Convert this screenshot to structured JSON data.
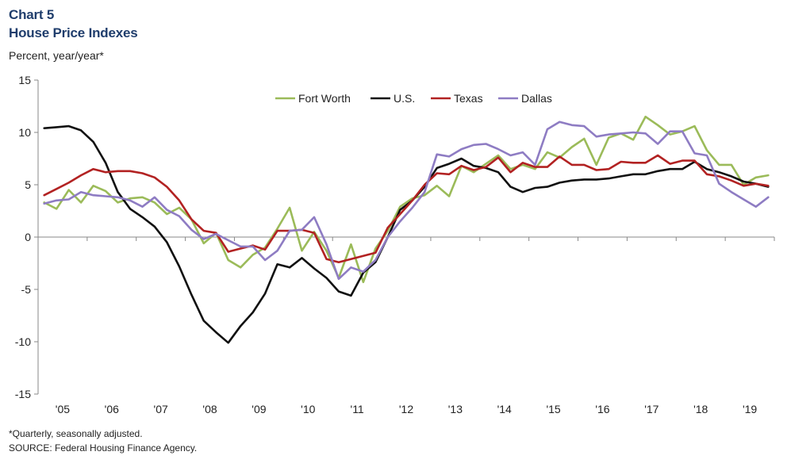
{
  "header": {
    "chart_number": "Chart 5",
    "title": "House Price Indexes",
    "ylabel": "Percent, year/year*"
  },
  "footer": {
    "note": "*Quarterly, seasonally adjusted.",
    "source": "SOURCE: Federal Housing Finance Agency."
  },
  "chart_data": {
    "type": "line",
    "title": "House Price Indexes",
    "ylabel": "Percent, year/year*",
    "xlabel": "",
    "ylim": [
      -15,
      15
    ],
    "yticks": [
      15,
      10,
      5,
      0,
      -5,
      -10,
      -15
    ],
    "x_start": "2005Q1",
    "x_end": "2019Q2",
    "xticks": [
      "'05",
      "'06",
      "'07",
      "'08",
      "'09",
      "'10",
      "'11",
      "'12",
      "'13",
      "'14",
      "'15",
      "'16",
      "'17",
      "'18",
      "'19"
    ],
    "grid": false,
    "legend_position": "top",
    "series": [
      {
        "name": "Fort Worth",
        "color": "#9bbb59",
        "values": [
          3.3,
          2.7,
          4.5,
          3.3,
          4.9,
          4.4,
          3.3,
          3.7,
          3.8,
          3.3,
          2.2,
          2.8,
          1.7,
          -0.6,
          0.4,
          -2.2,
          -2.9,
          -1.7,
          -1.0,
          0.8,
          2.8,
          -1.3,
          0.5,
          -1.3,
          -3.9,
          -0.7,
          -4.3,
          -1.1,
          0.6,
          2.9,
          3.7,
          4.0,
          4.9,
          3.9,
          6.8,
          6.2,
          7.0,
          7.8,
          6.5,
          6.9,
          6.5,
          8.1,
          7.6,
          8.6,
          9.4,
          6.9,
          9.5,
          9.9,
          9.3,
          11.5,
          10.7,
          9.8,
          10.1,
          10.6,
          8.3,
          6.9,
          6.9,
          5.0,
          5.7,
          5.9
        ]
      },
      {
        "name": "U.S.",
        "color": "#111111",
        "values": [
          10.4,
          10.5,
          10.6,
          10.2,
          9.1,
          7.1,
          4.3,
          2.7,
          1.9,
          1.0,
          -0.5,
          -2.8,
          -5.5,
          -8.0,
          -9.1,
          -10.1,
          -8.5,
          -7.2,
          -5.4,
          -2.6,
          -2.9,
          -2.0,
          -3.0,
          -3.9,
          -5.2,
          -5.6,
          -3.4,
          -2.4,
          0.0,
          2.6,
          3.5,
          4.8,
          6.6,
          7.0,
          7.5,
          6.8,
          6.6,
          6.2,
          4.8,
          4.3,
          4.7,
          4.8,
          5.2,
          5.4,
          5.5,
          5.5,
          5.6,
          5.8,
          6.0,
          6.0,
          6.3,
          6.5,
          6.5,
          7.2,
          6.5,
          6.2,
          5.8,
          5.3,
          5.1,
          4.8
        ]
      },
      {
        "name": "Texas",
        "color": "#b22222",
        "values": [
          4.0,
          4.6,
          5.2,
          5.9,
          6.5,
          6.2,
          6.3,
          6.3,
          6.1,
          5.7,
          4.8,
          3.5,
          1.7,
          0.6,
          0.4,
          -1.4,
          -1.1,
          -0.8,
          -1.2,
          0.6,
          0.6,
          0.7,
          0.4,
          -2.1,
          -2.4,
          -2.1,
          -1.8,
          -1.5,
          0.9,
          2.2,
          3.5,
          5.0,
          6.1,
          6.0,
          6.8,
          6.4,
          6.7,
          7.6,
          6.2,
          7.1,
          6.7,
          6.7,
          7.7,
          6.9,
          6.9,
          6.4,
          6.5,
          7.2,
          7.1,
          7.1,
          7.8,
          7.0,
          7.3,
          7.3,
          6.0,
          5.8,
          5.4,
          4.9,
          5.1,
          4.9
        ]
      },
      {
        "name": "Dallas",
        "color": "#8e7cc3",
        "values": [
          3.2,
          3.5,
          3.6,
          4.3,
          4.0,
          3.9,
          3.8,
          3.5,
          2.9,
          3.8,
          2.6,
          2.0,
          0.7,
          -0.2,
          0.3,
          -0.3,
          -0.9,
          -0.9,
          -2.2,
          -1.3,
          0.6,
          0.7,
          1.9,
          -0.7,
          -4.0,
          -2.9,
          -3.3,
          -2.2,
          0.0,
          1.5,
          2.8,
          4.3,
          7.9,
          7.7,
          8.4,
          8.8,
          8.9,
          8.4,
          7.8,
          8.1,
          6.9,
          10.3,
          11.0,
          10.7,
          10.6,
          9.6,
          9.8,
          9.9,
          10.0,
          9.9,
          8.9,
          10.1,
          10.1,
          8.0,
          7.8,
          5.1,
          4.3,
          3.6,
          2.9,
          3.8
        ]
      }
    ]
  }
}
